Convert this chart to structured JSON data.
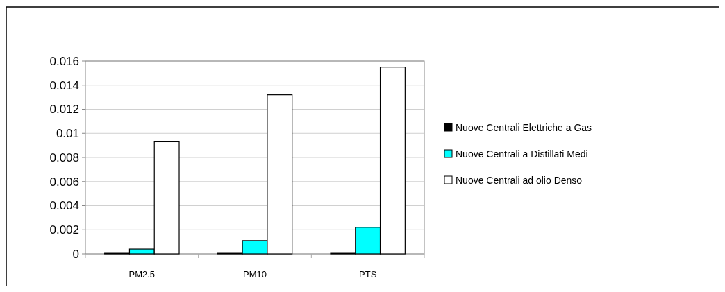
{
  "chart_data": {
    "type": "bar",
    "categories": [
      "PM2.5",
      "PM10",
      "PTS"
    ],
    "series": [
      {
        "name": "Nuove Centrali Elettriche a Gas",
        "color": "#000000",
        "values": [
          5e-05,
          5e-05,
          5e-05
        ]
      },
      {
        "name": "Nuove Centrali a Distillati Medi",
        "color": "#00ffff",
        "values": [
          0.0004,
          0.0011,
          0.0022
        ]
      },
      {
        "name": "Nuove Centrali ad olio Denso",
        "color": "#ffffff",
        "values": [
          0.0093,
          0.0132,
          0.0155
        ]
      }
    ],
    "ylim": [
      0,
      0.016
    ],
    "yticks": [
      0,
      0.002,
      0.004,
      0.006,
      0.008,
      0.01,
      0.012,
      0.014,
      0.016
    ],
    "grid": "y",
    "legend": "right"
  }
}
